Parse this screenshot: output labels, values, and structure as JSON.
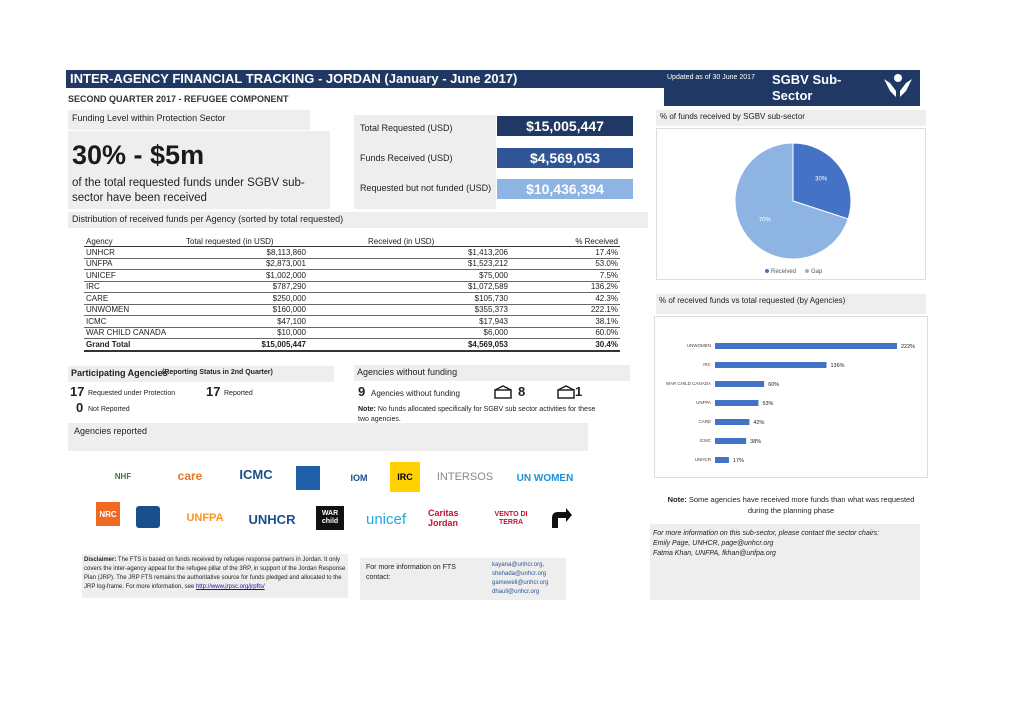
{
  "header": {
    "title": "INTER-AGENCY FINANCIAL TRACKING - JORDAN (January - June 2017)",
    "updated": "Updated as of 30 June 2017",
    "sector": "SGBV Sub-Sector",
    "subtitle": "SECOND QUARTER 2017 - REFUGEE COMPONENT"
  },
  "funding": {
    "section_label": "Funding Level within Protection Sector",
    "headline": "30% - $5m",
    "description": "of the total requested funds under SGBV sub-sector have been received",
    "total_requested_label": "Total Requested (USD)",
    "total_requested_value": "$15,005,447",
    "funds_received_label": "Funds Received (USD)",
    "funds_received_value": "$4,569,053",
    "not_funded_label": "Requested but not funded (USD)",
    "not_funded_value": "$10,436,394"
  },
  "distribution": {
    "label": "Distribution of received funds per Agency (sorted by total requested)",
    "headers": [
      "Agency",
      "Total requested (in USD)",
      "Received (in USD)",
      "% Received"
    ],
    "rows": [
      [
        "UNHCR",
        "$8,113,860",
        "$1,413,206",
        "17.4%"
      ],
      [
        "UNFPA",
        "$2,873,001",
        "$1,523,212",
        "53.0%"
      ],
      [
        "UNICEF",
        "$1,002,000",
        "$75,000",
        "7.5%"
      ],
      [
        "IRC",
        "$787,290",
        "$1,072,589",
        "136.2%"
      ],
      [
        "CARE",
        "$250,000",
        "$105,730",
        "42.3%"
      ],
      [
        "UNWOMEN",
        "$160,000",
        "$355,373",
        "222.1%"
      ],
      [
        "ICMC",
        "$47,100",
        "$17,943",
        "38.1%"
      ],
      [
        "WAR CHILD CANADA",
        "$10,000",
        "$6,000",
        "60.0%"
      ]
    ],
    "total": [
      "Grand Total",
      "$15,005,447",
      "$4,569,053",
      "30.4%"
    ]
  },
  "participating": {
    "title": "Participating Agencies",
    "title_note": "(Reporting Status in 2nd Quarter)",
    "requested_count": "17",
    "requested_label": "Requested under Protection",
    "reported_count": "17",
    "reported_label": "Reported",
    "not_reported_count": "0",
    "not_reported_label": "Not Reported"
  },
  "without_funding": {
    "title": "Agencies without funding",
    "count": "9",
    "label": "Agencies without funding",
    "ngo_count": "8",
    "un_count": "1",
    "note_bold": "Note:",
    "note": "No funds allocated specifically for SGBV sub sector activities for these two agencies."
  },
  "agencies_reported": {
    "label": "Agencies reported",
    "logos": [
      "NHF",
      "care",
      "ICMC",
      "",
      "IOM",
      "IRC",
      "INTERSOS",
      "UN WOMEN",
      "NRC",
      "",
      "UNFPA",
      "UNHCR",
      "WAR child",
      "unicef",
      "Caritas Jordan",
      "VENTO DI TERRA",
      ""
    ]
  },
  "disclaimer": {
    "bold": "Disclaimer:",
    "text": "The FTS is based on funds received by refugee response partners in Jordan. It only covers the inter-agency appeal for the refugee pillar of the 3RP, in support of the Jordan Response Plan (JRP). The JRP FTS remains the authoritative source for funds pledged and allocated to the JRP log-frame. For more information, see",
    "link": "http://www.jrpsc.org/jrpfts/"
  },
  "fts_contact": {
    "label": "For more information on FTS contact:",
    "emails": [
      "kayana@unhcr.org,",
      "shehada@unhcr.org",
      "gamewell@unhcr.org",
      "dhaull@unhcr.org"
    ]
  },
  "pie": {
    "title": "% of funds received by SGBV sub-sector",
    "legend_received": "Received",
    "legend_gap": "Gap",
    "label_received": "30%",
    "label_gap": "70%"
  },
  "bar": {
    "title": "% of received funds vs total requested (by Agencies)"
  },
  "footnote": {
    "bold": "Note:",
    "text": "Some agencies have received more funds than what was requested during the planning phase"
  },
  "contact": {
    "line1": "For more information on this sub-sector, please contact the sector chairs:",
    "line2": "Emily Page, UNHCR, page@unhcr.org",
    "line3": "Fatma Khan, UNFPA, fkhan@unfpa.org"
  },
  "colors": {
    "navy": "#1f3864",
    "steel": "#2f5597",
    "light_blue": "#8eb4e3",
    "pie_received": "#4472c4",
    "pie_gap": "#8eb4e3"
  },
  "chart_data": [
    {
      "type": "pie",
      "title": "% of funds received by SGBV sub-sector",
      "categories": [
        "Received",
        "Gap"
      ],
      "values": [
        30,
        70
      ]
    },
    {
      "type": "bar",
      "title": "% of received funds vs total requested (by Agencies)",
      "orientation": "horizontal",
      "categories": [
        "UNWOMEN",
        "IRC",
        "WAR CHILD CANADA",
        "UNFPA",
        "CARE",
        "ICMC",
        "UNHCR"
      ],
      "values": [
        222,
        136,
        60,
        53,
        42,
        38,
        17
      ],
      "labels": [
        "222%",
        "136%",
        "60%",
        "53%",
        "42%",
        "38%",
        "17%"
      ],
      "xlim": [
        0,
        222
      ]
    }
  ]
}
